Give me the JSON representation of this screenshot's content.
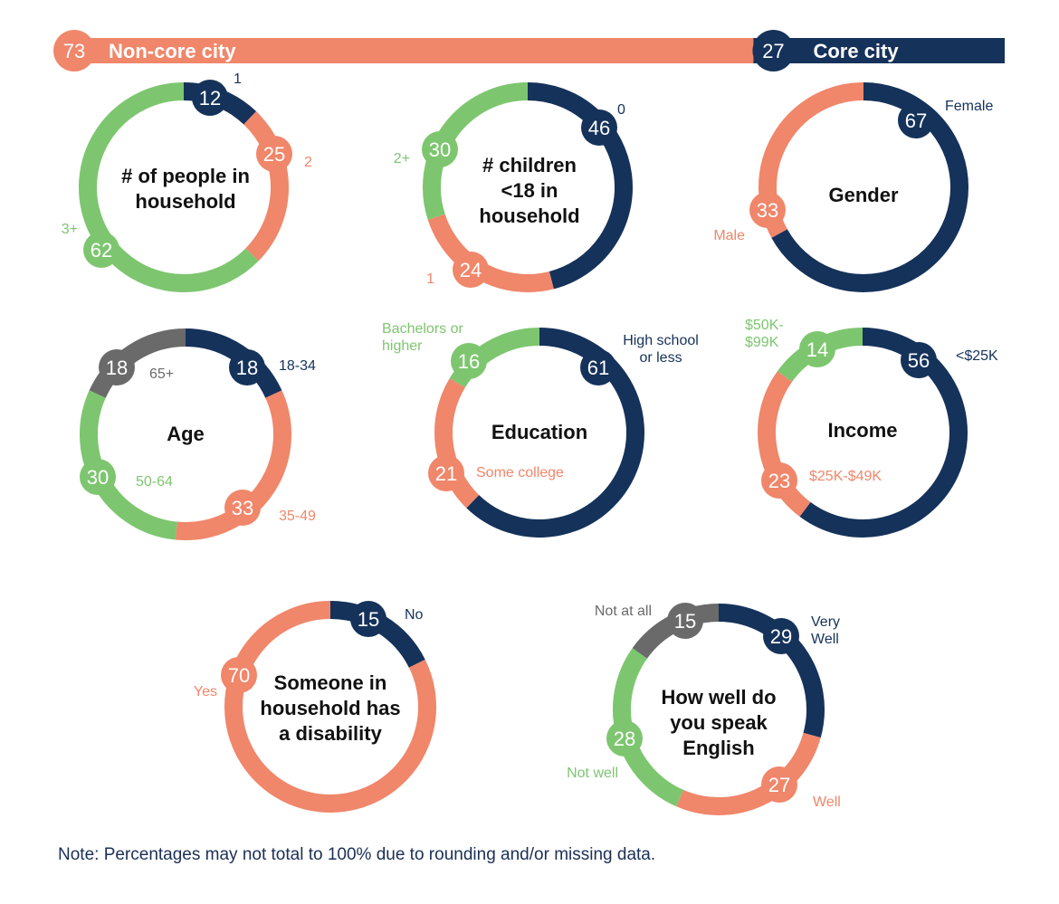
{
  "colors": {
    "navy": "#15325a",
    "salmon": "#f0866a",
    "green": "#7dc66f",
    "gray": "#6a6a6a",
    "white": "#ffffff"
  },
  "header": {
    "noncore": {
      "value": 73,
      "label": "Non-core city"
    },
    "core": {
      "value": 27,
      "label": "Core city"
    }
  },
  "note": "Note: Percentages may not total to 100% due to rounding and/or missing data.",
  "chart_data": [
    {
      "type": "pie",
      "title_lines": [
        "# of people in",
        "household"
      ],
      "segments": [
        {
          "label": "1",
          "value": 12,
          "color": "navy"
        },
        {
          "label": "2",
          "value": 25,
          "color": "salmon"
        },
        {
          "label": "3+",
          "value": 62,
          "color": "green"
        }
      ]
    },
    {
      "type": "pie",
      "title_lines": [
        "# children",
        "<18 in",
        "household"
      ],
      "segments": [
        {
          "label": "0",
          "value": 46,
          "color": "navy"
        },
        {
          "label": "1",
          "value": 24,
          "color": "salmon"
        },
        {
          "label": "2+",
          "value": 30,
          "color": "green"
        }
      ]
    },
    {
      "type": "pie",
      "title_lines": [
        "Gender"
      ],
      "segments": [
        {
          "label": "Female",
          "value": 67,
          "color": "navy"
        },
        {
          "label": "Male",
          "value": 33,
          "color": "salmon"
        }
      ]
    },
    {
      "type": "pie",
      "title_lines": [
        "Age"
      ],
      "segments": [
        {
          "label": "18-34",
          "value": 18,
          "color": "navy"
        },
        {
          "label": "35-49",
          "value": 33,
          "color": "salmon"
        },
        {
          "label": "50-64",
          "value": 30,
          "color": "green"
        },
        {
          "label": "65+",
          "value": 18,
          "color": "gray"
        }
      ]
    },
    {
      "type": "pie",
      "title_lines": [
        "Education"
      ],
      "segments": [
        {
          "label": "High school or less",
          "value": 61,
          "color": "navy"
        },
        {
          "label": "Some college",
          "value": 21,
          "color": "salmon"
        },
        {
          "label": "Bachelors or higher",
          "value": 16,
          "color": "green"
        }
      ]
    },
    {
      "type": "pie",
      "title_lines": [
        "Income"
      ],
      "segments": [
        {
          "label": "<$25K",
          "value": 56,
          "color": "navy"
        },
        {
          "label": "$25K-$49K",
          "value": 23,
          "color": "salmon"
        },
        {
          "label": "$50K-$99K",
          "value": 14,
          "color": "green"
        }
      ]
    },
    {
      "type": "pie",
      "title_lines": [
        "Someone in",
        "household has",
        "a disability"
      ],
      "segments": [
        {
          "label": "No",
          "value": 15,
          "color": "navy"
        },
        {
          "label": "Yes",
          "value": 70,
          "color": "salmon"
        }
      ]
    },
    {
      "type": "pie",
      "title_lines": [
        "How well  do",
        "you speak",
        "English"
      ],
      "segments": [
        {
          "label": "Very Well",
          "value": 29,
          "color": "navy"
        },
        {
          "label": "Well",
          "value": 27,
          "color": "salmon"
        },
        {
          "label": "Not well",
          "value": 28,
          "color": "green"
        },
        {
          "label": "Not at all",
          "value": 15,
          "color": "gray"
        }
      ]
    }
  ]
}
